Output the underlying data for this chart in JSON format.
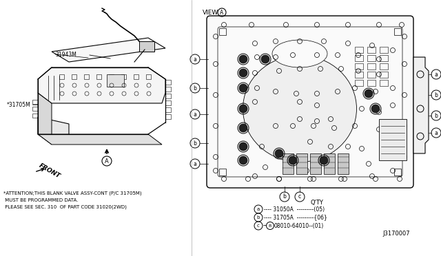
{
  "bg_color": "#ffffff",
  "line_color": "#000000",
  "text_color": "#000000",
  "part_label_1": "31943M",
  "part_label_2": "*31705M",
  "front_label": "FRONT",
  "attention_text": "*ATTENTION;THIS BLANK VALVE ASSY-CONT (P/C 31705M)\n MUST BE PROGRAMMED DATA.\n PLEASE SEE SEC. 310  OF PART CODE 31020(2WD)",
  "qty_label": "Q'TY",
  "diagram_num": "J3170007",
  "font_family": "DejaVu Sans",
  "view_label": "VIEW"
}
